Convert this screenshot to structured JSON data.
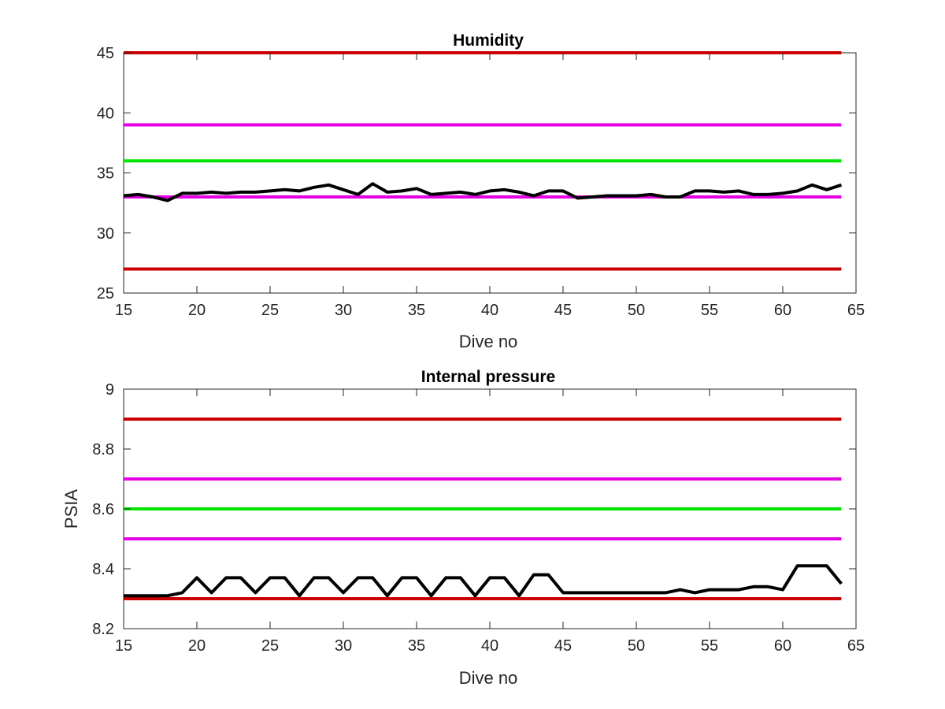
{
  "chart_data": [
    {
      "type": "line",
      "title": "Humidity",
      "xlabel": "Dive no",
      "ylabel": "",
      "xlim": [
        15,
        65
      ],
      "ylim": [
        25,
        45
      ],
      "xticks": [
        "15",
        "20",
        "25",
        "30",
        "35",
        "40",
        "45",
        "50",
        "55",
        "60",
        "65"
      ],
      "yticks": [
        "25",
        "30",
        "35",
        "40",
        "45"
      ],
      "grid": false,
      "reference_lines": [
        {
          "y": 45,
          "color": "#cc0000"
        },
        {
          "y": 39,
          "color": "#e600e6"
        },
        {
          "y": 36,
          "color": "#00e600"
        },
        {
          "y": 33,
          "color": "#e600e6"
        },
        {
          "y": 27,
          "color": "#cc0000"
        }
      ],
      "series": [
        {
          "color": "#000000",
          "x": [
            15,
            16,
            17,
            18,
            19,
            20,
            21,
            22,
            23,
            24,
            25,
            26,
            27,
            28,
            29,
            30,
            31,
            32,
            33,
            34,
            35,
            36,
            37,
            38,
            39,
            40,
            41,
            42,
            43,
            44,
            45,
            46,
            47,
            48,
            49,
            50,
            51,
            52,
            53,
            54,
            55,
            56,
            57,
            58,
            59,
            60,
            61,
            62,
            63,
            64
          ],
          "y": [
            33.1,
            33.2,
            33.0,
            32.7,
            33.3,
            33.3,
            33.4,
            33.3,
            33.4,
            33.4,
            33.5,
            33.6,
            33.5,
            33.8,
            34.0,
            33.6,
            33.2,
            34.1,
            33.4,
            33.5,
            33.7,
            33.2,
            33.3,
            33.4,
            33.2,
            33.5,
            33.6,
            33.4,
            33.1,
            33.5,
            33.5,
            32.9,
            33.0,
            33.1,
            33.1,
            33.1,
            33.2,
            33.0,
            33.0,
            33.5,
            33.5,
            33.4,
            33.5,
            33.2,
            33.2,
            33.3,
            33.5,
            34.0,
            33.6,
            34.0
          ]
        }
      ]
    },
    {
      "type": "line",
      "title": "Internal pressure",
      "xlabel": "Dive no",
      "ylabel": "PSIA",
      "xlim": [
        15,
        65
      ],
      "ylim": [
        8.2,
        9.0
      ],
      "xticks": [
        "15",
        "20",
        "25",
        "30",
        "35",
        "40",
        "45",
        "50",
        "55",
        "60",
        "65"
      ],
      "yticks": [
        "8.2",
        "8.4",
        "8.6",
        "8.8",
        "9"
      ],
      "grid": false,
      "reference_lines": [
        {
          "y": 8.9,
          "color": "#cc0000"
        },
        {
          "y": 8.7,
          "color": "#e600e6"
        },
        {
          "y": 8.6,
          "color": "#00e600"
        },
        {
          "y": 8.5,
          "color": "#e600e6"
        },
        {
          "y": 8.3,
          "color": "#cc0000"
        }
      ],
      "series": [
        {
          "color": "#000000",
          "x": [
            15,
            16,
            17,
            18,
            19,
            20,
            21,
            22,
            23,
            24,
            25,
            26,
            27,
            28,
            29,
            30,
            31,
            32,
            33,
            34,
            35,
            36,
            37,
            38,
            39,
            40,
            41,
            42,
            43,
            44,
            45,
            46,
            47,
            48,
            49,
            50,
            51,
            52,
            53,
            54,
            55,
            56,
            57,
            58,
            59,
            60,
            61,
            62,
            63,
            64
          ],
          "y": [
            8.31,
            8.31,
            8.31,
            8.31,
            8.32,
            8.37,
            8.32,
            8.37,
            8.37,
            8.32,
            8.37,
            8.37,
            8.31,
            8.37,
            8.37,
            8.32,
            8.37,
            8.37,
            8.31,
            8.37,
            8.37,
            8.31,
            8.37,
            8.37,
            8.31,
            8.37,
            8.37,
            8.31,
            8.38,
            8.38,
            8.32,
            8.32,
            8.32,
            8.32,
            8.32,
            8.32,
            8.32,
            8.32,
            8.33,
            8.32,
            8.33,
            8.33,
            8.33,
            8.34,
            8.34,
            8.33,
            8.41,
            8.41,
            8.41,
            8.35
          ]
        }
      ]
    }
  ]
}
